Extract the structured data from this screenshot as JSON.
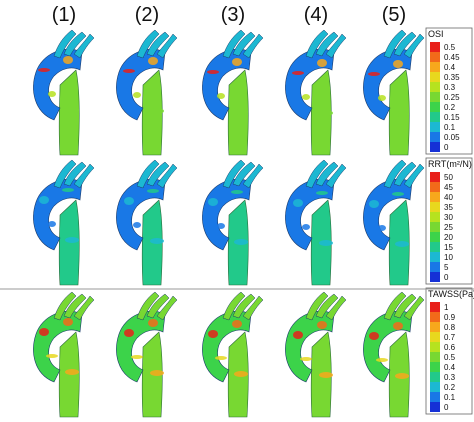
{
  "columns": [
    "(1)",
    "(2)",
    "(3)",
    "(4)",
    "(5)"
  ],
  "rows": [
    {
      "metric": "OSI",
      "legend_title": "OSI",
      "ticks": [
        "0.5",
        "0.45",
        "0.4",
        "0.35",
        "0.3",
        "0.25",
        "0.2",
        "0.15",
        "0.1",
        "0.05",
        "0"
      ],
      "colors": [
        "#e8201a",
        "#f26a1a",
        "#f7a81c",
        "#e8d81e",
        "#b6e21f",
        "#78d832",
        "#3cd34a",
        "#22c98a",
        "#1cb8d2",
        "#1978e6",
        "#1530d6"
      ]
    },
    {
      "metric": "RRT",
      "legend_title": "RRT(m²/N)",
      "ticks": [
        "50",
        "45",
        "40",
        "35",
        "30",
        "25",
        "20",
        "15",
        "10",
        "5",
        "0"
      ],
      "colors": [
        "#e8201a",
        "#f26a1a",
        "#f7a81c",
        "#e8d81e",
        "#b6e21f",
        "#78d832",
        "#3cd34a",
        "#22c98a",
        "#1cb8d2",
        "#1978e6",
        "#1530d6"
      ]
    },
    {
      "metric": "TAWSS",
      "legend_title": "TAWSS(Pa)",
      "ticks": [
        "1",
        "0.9",
        "0.8",
        "0.7",
        "0.6",
        "0.5",
        "0.4",
        "0.3",
        "0.2",
        "0.1",
        "0"
      ],
      "colors": [
        "#e8201a",
        "#f26a1a",
        "#f7a81c",
        "#e8d81e",
        "#b6e21f",
        "#78d832",
        "#3cd34a",
        "#22c98a",
        "#1cb8d2",
        "#1978e6",
        "#1530d6"
      ]
    }
  ]
}
